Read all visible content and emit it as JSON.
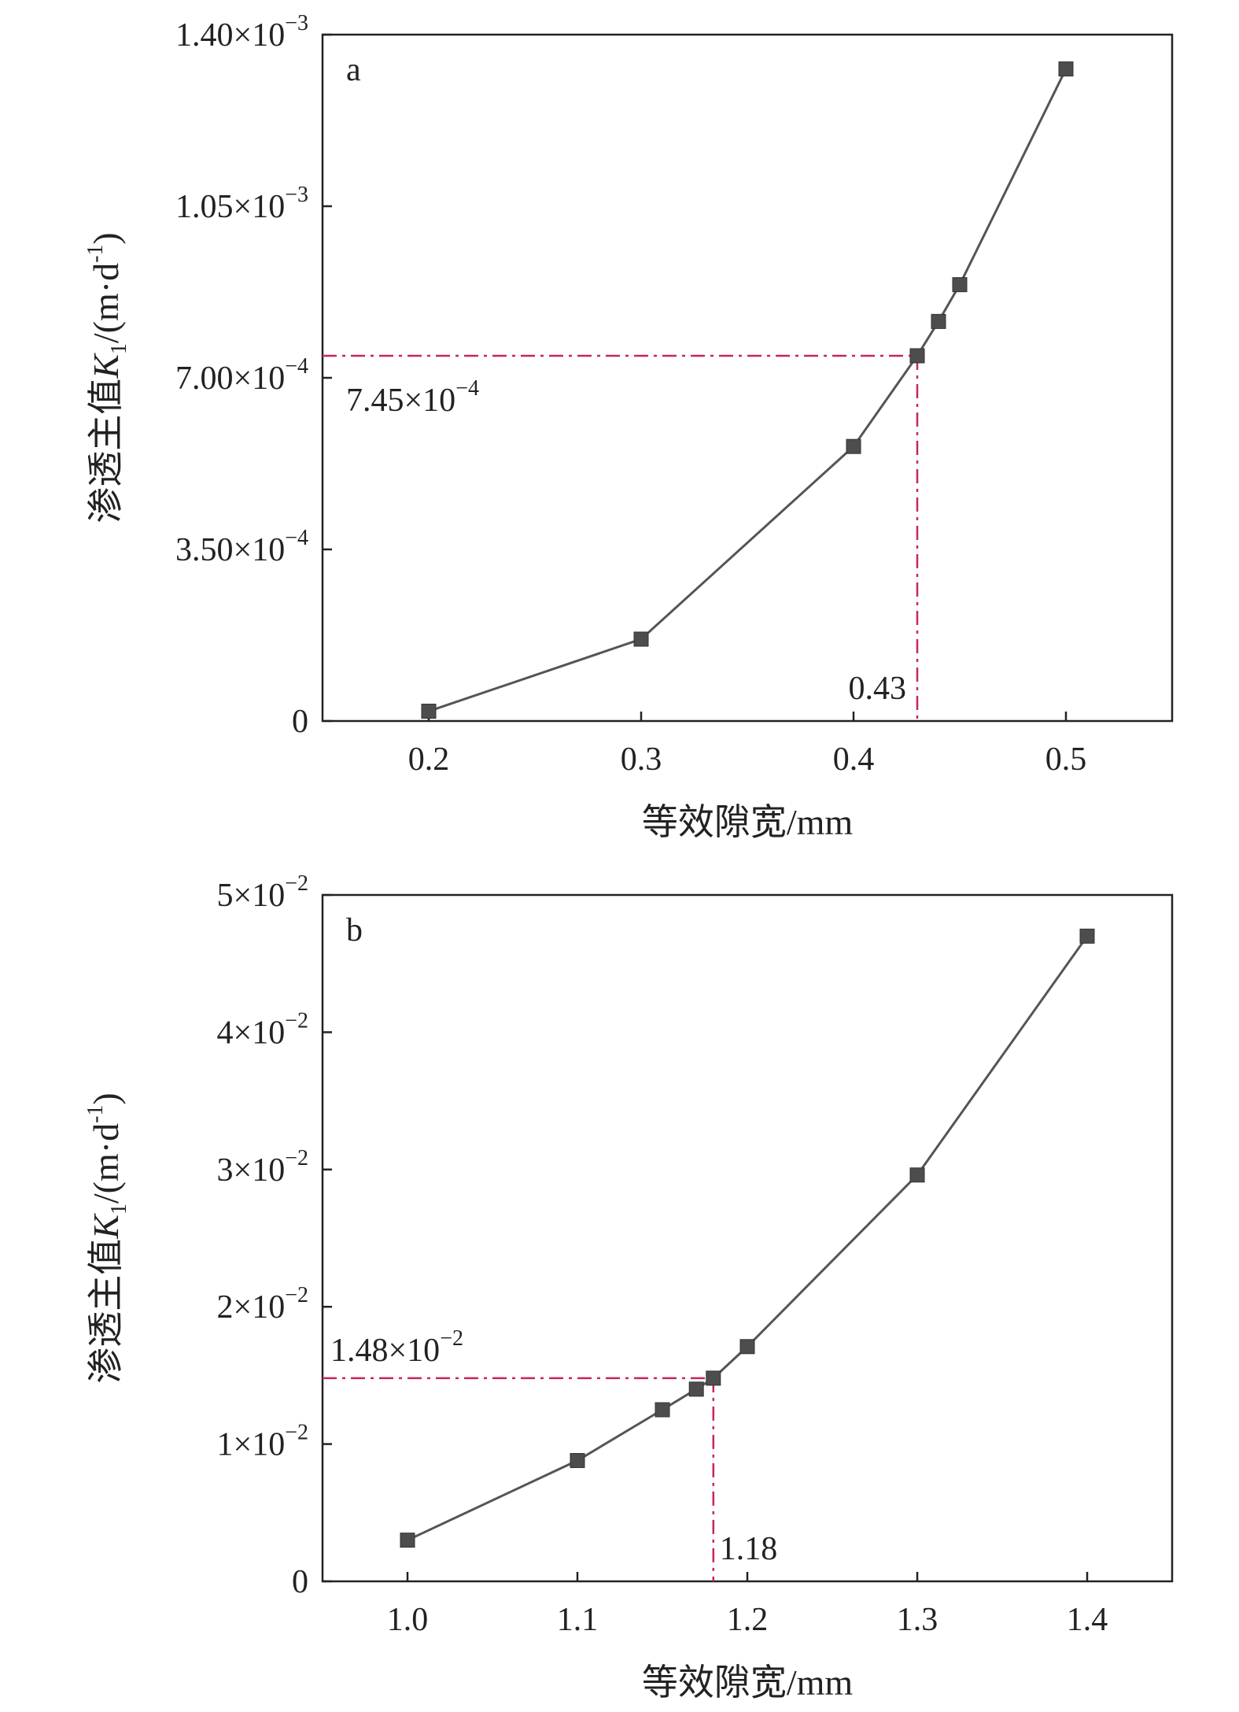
{
  "colors": {
    "series": "#555555",
    "marker": "#4d4d4d",
    "reference": "#c8265a",
    "axis": "#222222"
  },
  "chart_data": [
    {
      "type": "line",
      "panel_label": "a",
      "xlabel": "等效隙宽/mm",
      "ylabel_prefix": "渗透主值",
      "ylabel_symbol": "K",
      "ylabel_subscript": "1",
      "ylabel_unit": "/(m·d",
      "ylabel_unit_exp": "-1",
      "ylabel_unit_close": ")",
      "xlim": [
        0.15,
        0.55
      ],
      "ylim": [
        0,
        0.0014
      ],
      "x_ticks": [
        0.2,
        0.3,
        0.4,
        0.5
      ],
      "x_tick_labels": [
        "0.2",
        "0.3",
        "0.4",
        "0.5"
      ],
      "y_ticks": [
        0,
        0.00035,
        0.0007,
        0.00105,
        0.0014
      ],
      "y_tick_labels": [
        {
          "mant": "0",
          "exp": ""
        },
        {
          "mant": "3.50×10",
          "exp": "−4"
        },
        {
          "mant": "7.00×10",
          "exp": "−4"
        },
        {
          "mant": "1.05×10",
          "exp": "−3"
        },
        {
          "mant": "1.40×10",
          "exp": "−3"
        }
      ],
      "series": [
        {
          "x": [
            0.2,
            0.3,
            0.4,
            0.43,
            0.44,
            0.45,
            0.5
          ],
          "y": [
            2e-05,
            0.000167,
            0.00056,
            0.000745,
            0.000815,
            0.00089,
            0.00133
          ]
        }
      ],
      "reference": {
        "x": 0.43,
        "y": 0.000745
      },
      "ref_x_label": "0.43",
      "ref_y_label": {
        "mant": "7.45×10",
        "exp": "−4"
      }
    },
    {
      "type": "line",
      "panel_label": "b",
      "xlabel": "等效隙宽/mm",
      "ylabel_prefix": "渗透主值",
      "ylabel_symbol": "K",
      "ylabel_subscript": "1",
      "ylabel_unit": "/(m·d",
      "ylabel_unit_exp": "-1",
      "ylabel_unit_close": ")",
      "xlim": [
        0.95,
        1.45
      ],
      "ylim": [
        0,
        0.05
      ],
      "x_ticks": [
        1.0,
        1.1,
        1.2,
        1.3,
        1.4
      ],
      "x_tick_labels": [
        "1.0",
        "1.1",
        "1.2",
        "1.3",
        "1.4"
      ],
      "y_ticks": [
        0,
        0.01,
        0.02,
        0.03,
        0.04,
        0.05
      ],
      "y_tick_labels": [
        {
          "mant": "0",
          "exp": ""
        },
        {
          "mant": "1×10",
          "exp": "−2"
        },
        {
          "mant": "2×10",
          "exp": "−2"
        },
        {
          "mant": "3×10",
          "exp": "−2"
        },
        {
          "mant": "4×10",
          "exp": "−2"
        },
        {
          "mant": "5×10",
          "exp": "−2"
        }
      ],
      "series": [
        {
          "x": [
            1.0,
            1.1,
            1.15,
            1.17,
            1.18,
            1.2,
            1.3,
            1.4
          ],
          "y": [
            0.003,
            0.0088,
            0.0125,
            0.014,
            0.0148,
            0.0171,
            0.0296,
            0.047
          ]
        }
      ],
      "reference": {
        "x": 1.18,
        "y": 0.0148
      },
      "ref_x_label": "1.18",
      "ref_y_label": {
        "mant": "1.48×10",
        "exp": "−2"
      }
    }
  ]
}
